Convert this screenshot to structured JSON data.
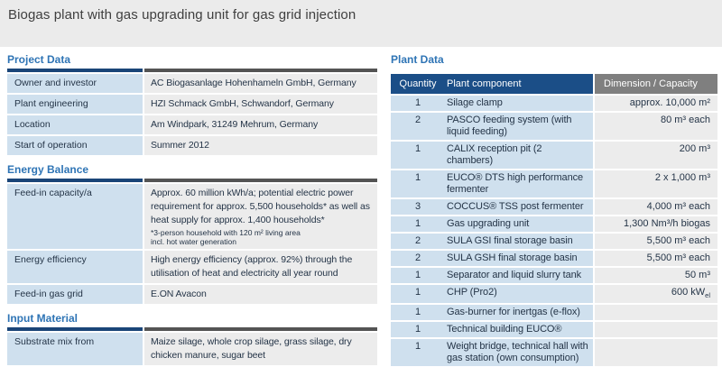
{
  "title": "Biogas plant with gas upgrading unit for gas grid injection",
  "project_data": {
    "section_title": "Project Data",
    "rows": [
      {
        "label": "Owner and investor",
        "value": "AC Biogasanlage Hohenhameln GmbH, Germany"
      },
      {
        "label": "Plant engineering",
        "value": "HZI Schmack GmbH, Schwandorf, Germany"
      },
      {
        "label": "Location",
        "value": "Am Windpark, 31249 Mehrum, Germany"
      },
      {
        "label": "Start of operation",
        "value": "Summer 2012"
      }
    ]
  },
  "energy_balance": {
    "section_title": "Energy Balance",
    "rows": [
      {
        "label": "Feed-in capacity/a",
        "value": "Approx. 60 million kWh/a; potential electric power requirement for approx. 5,500 households* as well as heat supply for approx. 1,400 households*",
        "footnote1": "*3-person household with 120 m² living area",
        "footnote2": "incl. hot water generation"
      },
      {
        "label": "Energy efficiency",
        "value": "High energy efficiency (approx. 92%) through the utilisation of heat and electricity all year round"
      },
      {
        "label": "Feed-in gas grid",
        "value": "E.ON Avacon"
      }
    ]
  },
  "input_material": {
    "section_title": "Input Material",
    "rows": [
      {
        "label": "Substrate mix from",
        "value": "Maize silage, whole crop silage, grass silage, dry chicken manure, sugar beet"
      }
    ]
  },
  "plant_data": {
    "section_title": "Plant Data",
    "headers": {
      "quantity": "Quantity",
      "component": "Plant component",
      "capacity": "Dimension / Capacity"
    },
    "rows": [
      {
        "qty": "1",
        "component": "Silage clamp",
        "capacity": "approx. 10,000 m²"
      },
      {
        "qty": "2",
        "component": "PASCO feeding system (with liquid feeding)",
        "capacity": "80 m³ each"
      },
      {
        "qty": "1",
        "component": "CALIX reception pit (2 chambers)",
        "capacity": "200 m³"
      },
      {
        "qty": "1",
        "component": "EUCO® DTS high performance fermenter",
        "capacity": "2 x 1,000 m³"
      },
      {
        "qty": "3",
        "component": "COCCUS® TSS post fermenter",
        "capacity": "4,000 m³ each"
      },
      {
        "qty": "1",
        "component": "Gas upgrading unit",
        "capacity": "1,300 Nm³/h biogas"
      },
      {
        "qty": "2",
        "component": "SULA GSI final storage basin",
        "capacity": "5,500 m³ each"
      },
      {
        "qty": "2",
        "component": "SULA GSH final storage basin",
        "capacity": "5,500 m³ each"
      },
      {
        "qty": "1",
        "component": "Separator and liquid slurry tank",
        "capacity": "50 m³"
      },
      {
        "qty": "1",
        "component": "CHP (Pro2)",
        "capacity": "600 kW",
        "capacity_sub": "el"
      },
      {
        "qty": "1",
        "component": "Gas-burner for inertgas (e-flox)",
        "capacity": ""
      },
      {
        "qty": "1",
        "component": "Technical building EUCO®",
        "capacity": ""
      },
      {
        "qty": "1",
        "component": "Weight bridge, technical hall with gas station (own consumption)",
        "capacity": ""
      }
    ]
  },
  "colors": {
    "top_band": "#ebebeb",
    "title_text": "#3f3f3f",
    "section_title_blue": "#2e74b5",
    "underline_navy": "#1a4578",
    "underline_gray": "#545454",
    "table_header_navy": "#1b4e87",
    "table_header_gray": "#7f7f7f",
    "cell_light_blue": "#cfe0ee",
    "cell_light_gray": "#ececec",
    "body_text_navy": "#243447"
  }
}
